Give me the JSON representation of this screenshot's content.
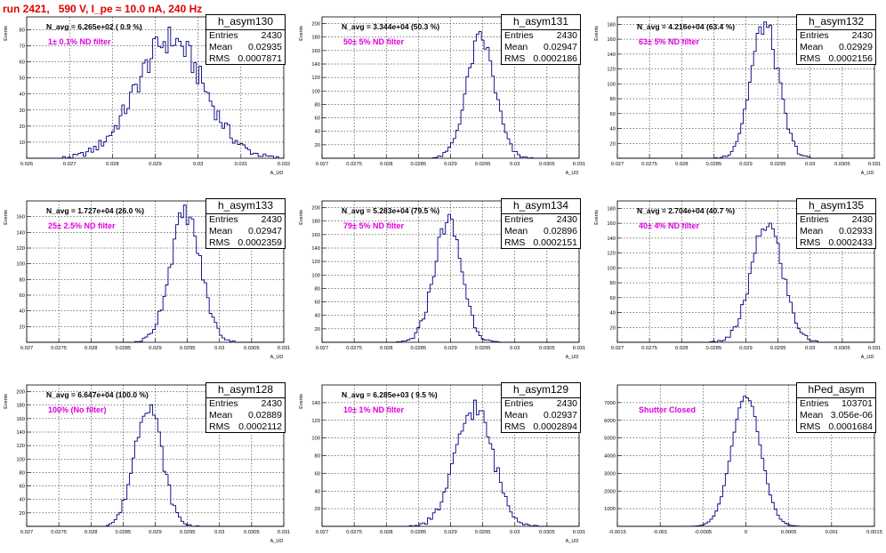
{
  "title": "run 2421,   590 V, I_pe ≈ 10.0 nA, 240 Hz",
  "chart_data": [
    {
      "type": "histogram",
      "name": "h_asym130",
      "stats": {
        "Entries": "2430",
        "Mean": "0.02935",
        "RMS": "0.0007871"
      },
      "n_avg": "N_avg = 6.265e+02 ( 0.9 %)",
      "note": "1± 0.1% ND filter",
      "ylabel": "Events",
      "xlabel": "A_UD",
      "xlim": [
        0.026,
        0.032
      ],
      "ylim": [
        0,
        88
      ],
      "xticks": [
        "0.026",
        "0.027",
        "0.028",
        "0.029",
        "0.03",
        "0.031",
        "0.032"
      ],
      "yticks": [
        "10",
        "20",
        "30",
        "40",
        "50",
        "60",
        "70",
        "80"
      ],
      "yvals": [
        10,
        20,
        30,
        40,
        50,
        60,
        70,
        80
      ],
      "mean": 0.02935,
      "rms": 0.0007871,
      "entries": 2430,
      "bins": 100
    },
    {
      "type": "histogram",
      "name": "h_asym131",
      "stats": {
        "Entries": "2430",
        "Mean": "0.02947",
        "RMS": "0.0002186"
      },
      "n_avg": "N_avg = 3.344e+04 (50.3 %)",
      "note": "50± 5% ND filter",
      "ylabel": "Events",
      "xlabel": "A_UD",
      "xlim": [
        0.027,
        0.031
      ],
      "ylim": [
        0,
        210
      ],
      "xticks": [
        "0.027",
        "0.0275",
        "0.028",
        "0.0285",
        "0.029",
        "0.0295",
        "0.03",
        "0.0305",
        "0.031"
      ],
      "yticks": [
        "20",
        "40",
        "60",
        "80",
        "100",
        "120",
        "140",
        "160",
        "180",
        "200"
      ],
      "yvals": [
        20,
        40,
        60,
        80,
        100,
        120,
        140,
        160,
        180,
        200
      ],
      "mean": 0.02947,
      "rms": 0.0002186,
      "entries": 2430,
      "bins": 100
    },
    {
      "type": "histogram",
      "name": "h_asym132",
      "stats": {
        "Entries": "2430",
        "Mean": "0.02929",
        "RMS": "0.0002156"
      },
      "n_avg": "N_avg = 4.216e+04 (63.4 %)",
      "note": "63± 5% ND filter",
      "ylabel": "Events",
      "xlabel": "A_UD",
      "xlim": [
        0.027,
        0.031
      ],
      "ylim": [
        0,
        190
      ],
      "xticks": [
        "0.027",
        "0.0275",
        "0.028",
        "0.0285",
        "0.029",
        "0.0295",
        "0.03",
        "0.0305",
        "0.031"
      ],
      "yticks": [
        "20",
        "40",
        "60",
        "80",
        "100",
        "120",
        "140",
        "160",
        "180"
      ],
      "yvals": [
        20,
        40,
        60,
        80,
        100,
        120,
        140,
        160,
        180
      ],
      "mean": 0.02929,
      "rms": 0.0002156,
      "entries": 2430,
      "bins": 100
    },
    {
      "type": "histogram",
      "name": "h_asym133",
      "stats": {
        "Entries": "2430",
        "Mean": "0.02947",
        "RMS": "0.0002359"
      },
      "n_avg": "N_avg = 1.727e+04 (26.0 %)",
      "note": "25± 2.5% ND filter",
      "ylabel": "Events",
      "xlabel": "A_UD",
      "xlim": [
        0.027,
        0.031
      ],
      "ylim": [
        0,
        180
      ],
      "xticks": [
        "0.027",
        "0.0275",
        "0.028",
        "0.0285",
        "0.029",
        "0.0295",
        "0.03",
        "0.0305",
        "0.031"
      ],
      "yticks": [
        "20",
        "40",
        "60",
        "80",
        "100",
        "120",
        "140",
        "160"
      ],
      "yvals": [
        20,
        40,
        60,
        80,
        100,
        120,
        140,
        160
      ],
      "mean": 0.02947,
      "rms": 0.0002359,
      "entries": 2430,
      "bins": 100
    },
    {
      "type": "histogram",
      "name": "h_asym134",
      "stats": {
        "Entries": "2430",
        "Mean": "0.02896",
        "RMS": "0.0002151"
      },
      "n_avg": "N_avg = 5.283e+04 (79.5 %)",
      "note": "79± 5% ND filter",
      "ylabel": "Events",
      "xlabel": "A_UD",
      "xlim": [
        0.027,
        0.031
      ],
      "ylim": [
        0,
        210
      ],
      "xticks": [
        "0.027",
        "0.0275",
        "0.028",
        "0.0285",
        "0.029",
        "0.0295",
        "0.03",
        "0.0305",
        "0.031"
      ],
      "yticks": [
        "20",
        "40",
        "60",
        "80",
        "100",
        "120",
        "140",
        "160",
        "180",
        "200"
      ],
      "yvals": [
        20,
        40,
        60,
        80,
        100,
        120,
        140,
        160,
        180,
        200
      ],
      "mean": 0.02896,
      "rms": 0.0002151,
      "entries": 2430,
      "bins": 100
    },
    {
      "type": "histogram",
      "name": "h_asym135",
      "stats": {
        "Entries": "2430",
        "Mean": "0.02933",
        "RMS": "0.0002433"
      },
      "n_avg": "N_avg = 2.704e+04 (40.7 %)",
      "note": "40± 4% ND filter",
      "ylabel": "Events",
      "xlabel": "A_UD",
      "xlim": [
        0.027,
        0.031
      ],
      "ylim": [
        0,
        190
      ],
      "xticks": [
        "0.027",
        "0.0275",
        "0.028",
        "0.0285",
        "0.029",
        "0.0295",
        "0.03",
        "0.0305",
        "0.031"
      ],
      "yticks": [
        "20",
        "40",
        "60",
        "80",
        "100",
        "120",
        "140",
        "160",
        "180"
      ],
      "yvals": [
        20,
        40,
        60,
        80,
        100,
        120,
        140,
        160,
        180
      ],
      "mean": 0.02933,
      "rms": 0.0002433,
      "entries": 2430,
      "bins": 100
    },
    {
      "type": "histogram",
      "name": "h_asym128",
      "stats": {
        "Entries": "2430",
        "Mean": "0.02889",
        "RMS": "0.0002112"
      },
      "n_avg": "N_avg = 6.647e+04 (100.0 %)",
      "note": "100% (No filter)",
      "ylabel": "Events",
      "xlabel": "A_UD",
      "xlim": [
        0.027,
        0.031
      ],
      "ylim": [
        0,
        210
      ],
      "xticks": [
        "0.027",
        "0.0275",
        "0.028",
        "0.0285",
        "0.029",
        "0.0295",
        "0.03",
        "0.0305",
        "0.031"
      ],
      "yticks": [
        "20",
        "40",
        "60",
        "80",
        "100",
        "120",
        "140",
        "160",
        "180",
        "200"
      ],
      "yvals": [
        20,
        40,
        60,
        80,
        100,
        120,
        140,
        160,
        180,
        200
      ],
      "mean": 0.02889,
      "rms": 0.0002112,
      "entries": 2430,
      "bins": 100
    },
    {
      "type": "histogram",
      "name": "h_asym129",
      "stats": {
        "Entries": "2430",
        "Mean": "0.02937",
        "RMS": "0.0002894"
      },
      "n_avg": "N_avg = 6.285e+03 ( 9.5 %)",
      "note": "10± 1% ND filter",
      "ylabel": "Events",
      "xlabel": "A_UD",
      "xlim": [
        0.027,
        0.031
      ],
      "ylim": [
        0,
        160
      ],
      "xticks": [
        "0.027",
        "0.0275",
        "0.028",
        "0.0285",
        "0.029",
        "0.0295",
        "0.03",
        "0.0305",
        "0.031"
      ],
      "yticks": [
        "20",
        "40",
        "60",
        "80",
        "100",
        "120",
        "140"
      ],
      "yvals": [
        20,
        40,
        60,
        80,
        100,
        120,
        140
      ],
      "mean": 0.02937,
      "rms": 0.0002894,
      "entries": 2430,
      "bins": 100
    },
    {
      "type": "histogram",
      "name": "hPed_asym",
      "stats": {
        "Entries": "103701",
        "Mean": "3.056e-06",
        "RMS": "0.0001684"
      },
      "n_avg": "",
      "note": "Shutter Closed",
      "ylabel": "",
      "xlabel": "",
      "xlim": [
        -0.0015,
        0.0015
      ],
      "ylim": [
        0,
        8000
      ],
      "xticks": [
        "-0.0015",
        "-0.001",
        "-0.0005",
        "0",
        "0.0005",
        "0.001",
        "0.0015"
      ],
      "yticks": [
        "1000",
        "2000",
        "3000",
        "4000",
        "5000",
        "6000",
        "7000"
      ],
      "yvals": [
        1000,
        2000,
        3000,
        4000,
        5000,
        6000,
        7000
      ],
      "mean": 3.056e-06,
      "rms": 0.0001684,
      "entries": 103701,
      "bins": 100
    }
  ]
}
